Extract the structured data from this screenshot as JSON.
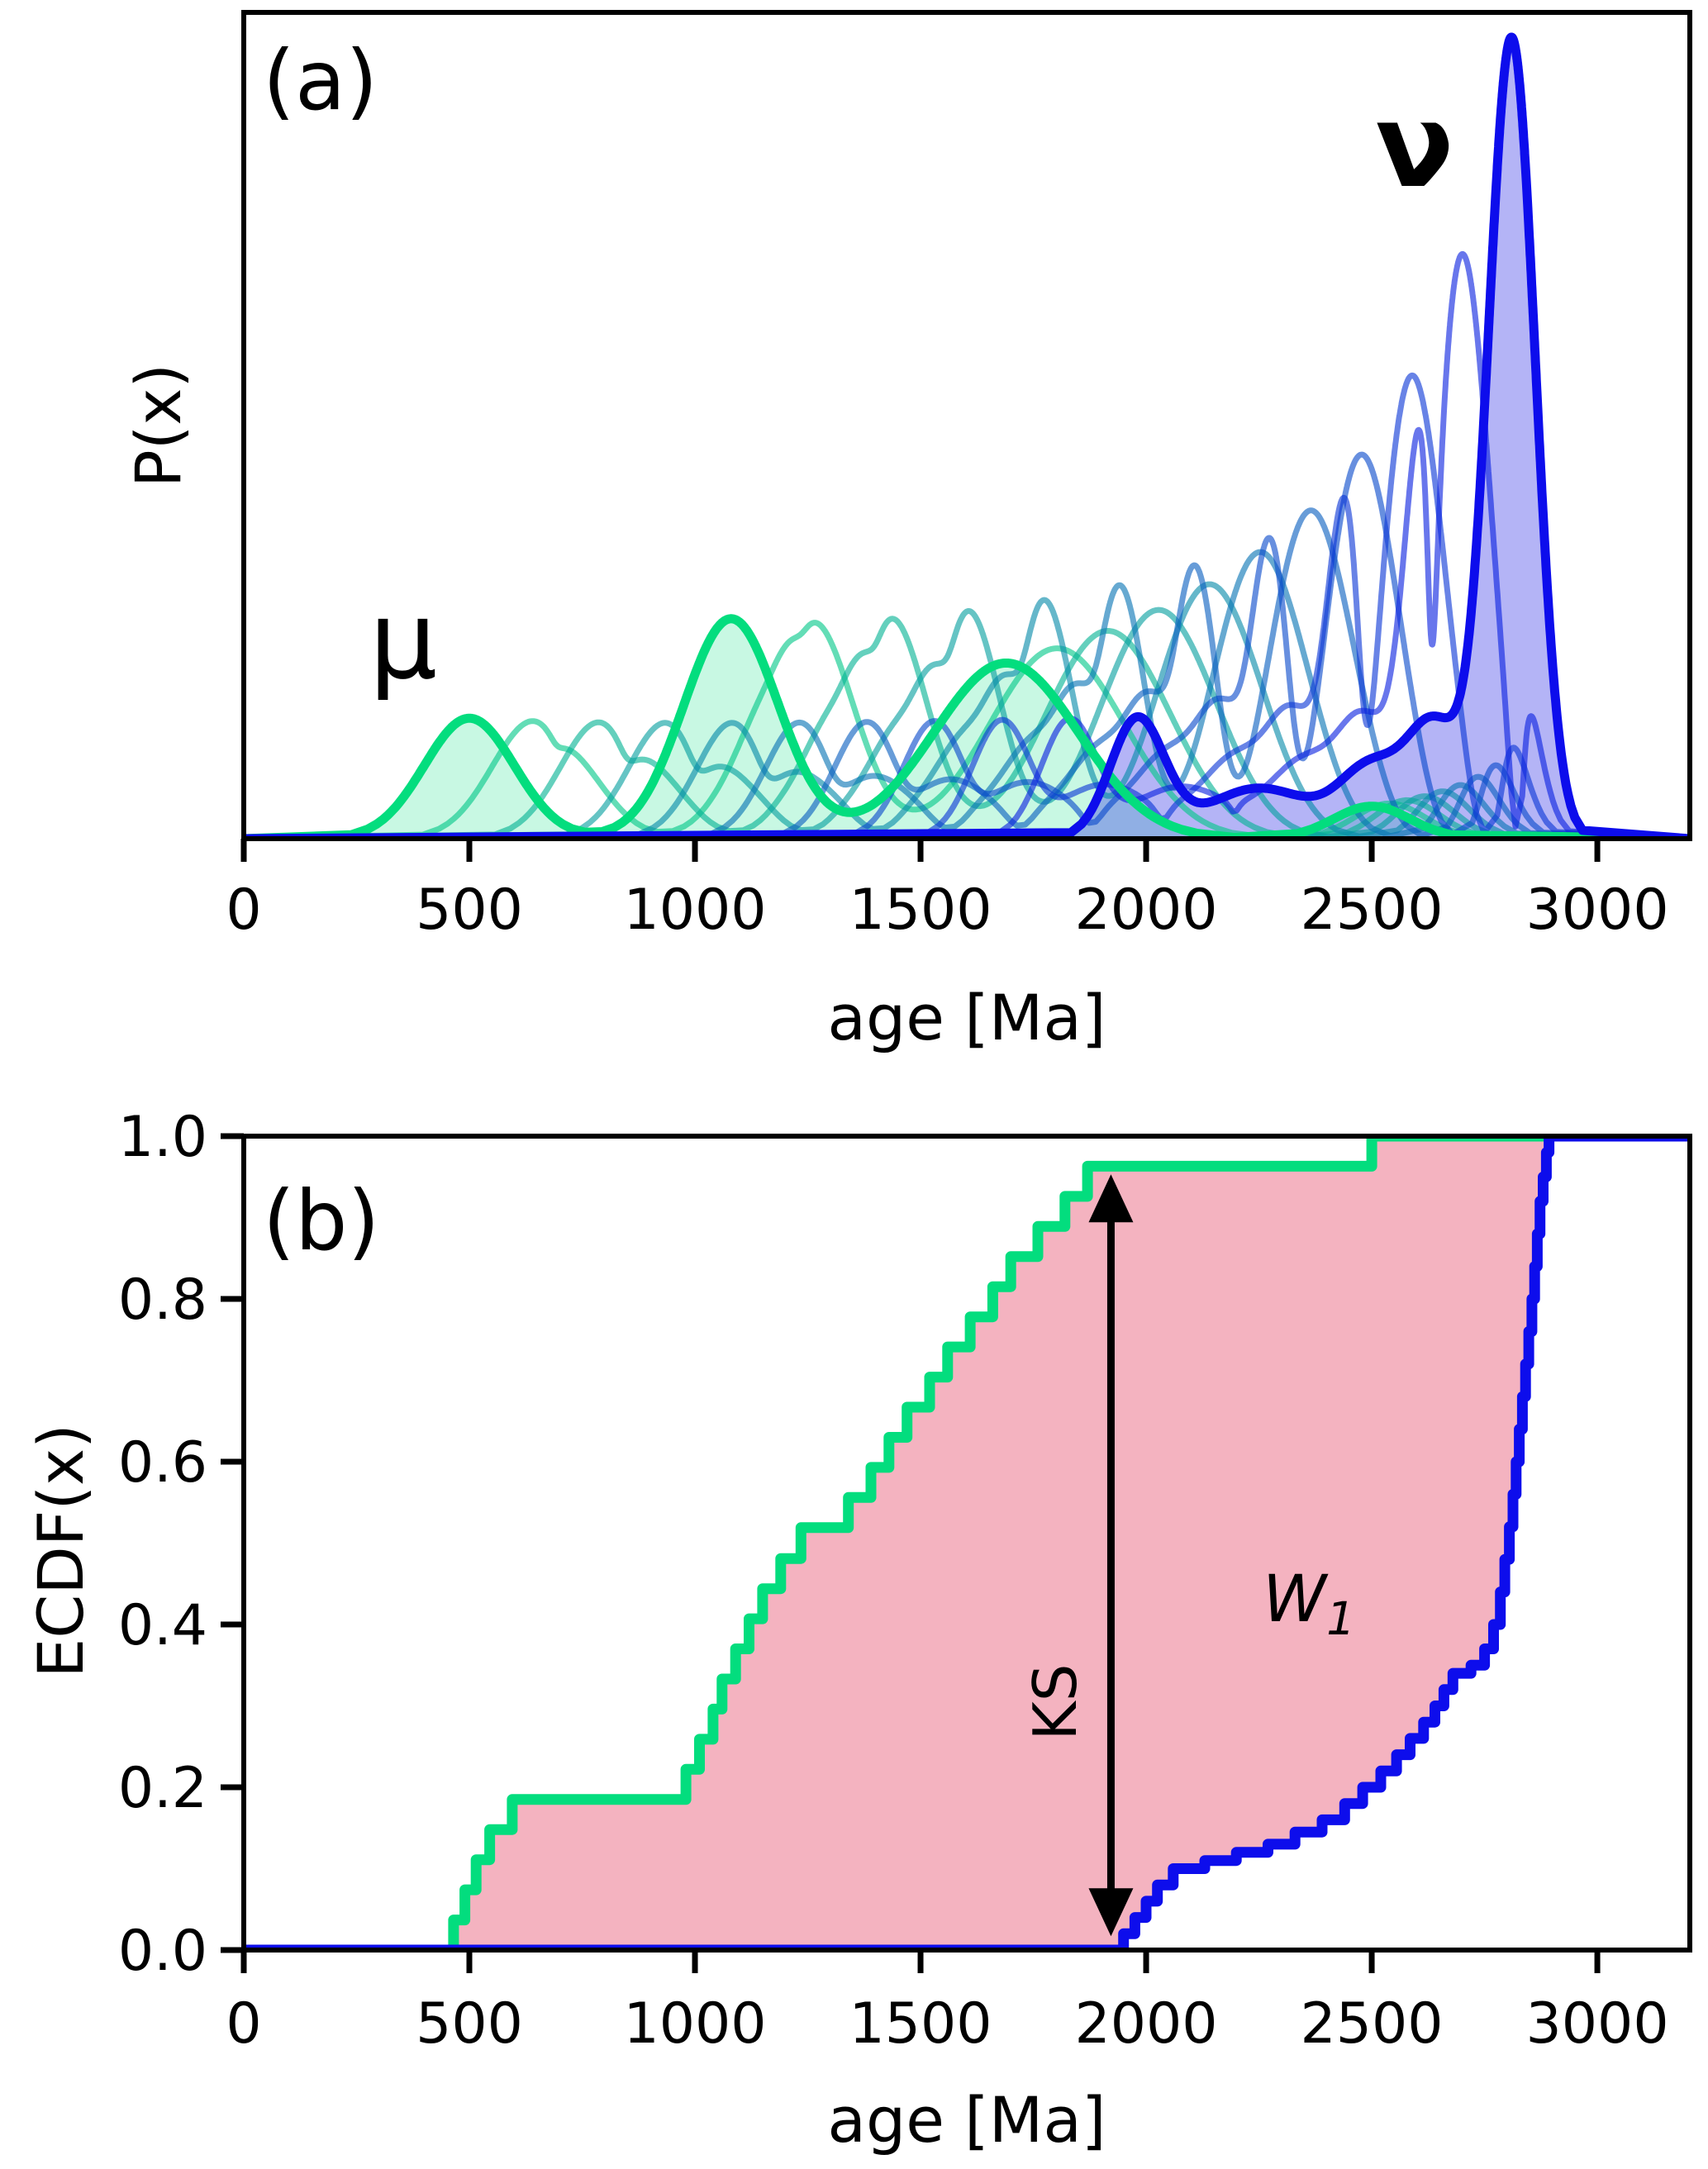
{
  "figure": {
    "panels": {
      "a": {
        "label": "(a)",
        "xlabel": "age [Ma]",
        "ylabel": "P(x)",
        "mu_label": "μ",
        "nu_label": "ν"
      },
      "b": {
        "label": "(b)",
        "xlabel": "age [Ma]",
        "ylabel": "ECDF(x)",
        "ks_label": "KS",
        "w1_label": "W",
        "w1_subscript": "1"
      }
    }
  },
  "chart_data": [
    {
      "panel": "a",
      "type": "area",
      "title": "(a)",
      "xlabel": "age [Ma]",
      "ylabel": "P(x)",
      "xlim": [
        0,
        3205
      ],
      "xticks": [
        0,
        500,
        1000,
        1500,
        2000,
        2500,
        3000
      ],
      "grid": false,
      "legend": "none (curves labeled μ and ν inside plot)",
      "mu_label": "μ",
      "nu_label": "ν",
      "mu_mixture_weight_mean_sigma": [
        [
          24,
          500,
          100
        ],
        [
          46,
          1080,
          105
        ],
        [
          56,
          1690,
          160
        ],
        [
          5.5,
          2500,
          85
        ]
      ],
      "nu_mixture_weight_mean_sigma": [
        [
          8.4,
          1980,
          60
        ],
        [
          7.2,
          2250,
          120
        ],
        [
          5.6,
          2500,
          70
        ],
        [
          7.8,
          2640,
          60
        ],
        [
          49.4,
          2810,
          52
        ]
      ],
      "interpolation_t": [
        0.1,
        0.2,
        0.3,
        0.4,
        0.5,
        0.6,
        0.7,
        0.8,
        0.9
      ],
      "peak_fraction_of_axis": 0.97,
      "colors": {
        "mu_line": "#03DD7E",
        "nu_line": "#0D0DEC",
        "mu_fill": "rgba(3,221,126,0.22)",
        "nu_fill": "rgba(40,40,230,0.35)",
        "intermediate_alpha": 0.62
      }
    },
    {
      "panel": "b",
      "type": "line",
      "title": "(b)",
      "xlabel": "age [Ma]",
      "ylabel": "ECDF(x)",
      "xlim": [
        0,
        3205
      ],
      "ylim": [
        0.0,
        1.0
      ],
      "xticks": [
        0,
        500,
        1000,
        1500,
        2000,
        2500,
        3000
      ],
      "yticks": [
        0.0,
        0.2,
        0.4,
        0.6,
        0.8,
        1.0
      ],
      "grid": false,
      "green_ecdf_steps": [
        [
          465,
          0.037
        ],
        [
          490,
          0.074
        ],
        [
          515,
          0.111
        ],
        [
          545,
          0.148
        ],
        [
          595,
          0.185
        ],
        [
          980,
          0.222
        ],
        [
          1010,
          0.259
        ],
        [
          1040,
          0.296
        ],
        [
          1060,
          0.333
        ],
        [
          1090,
          0.37
        ],
        [
          1120,
          0.407
        ],
        [
          1150,
          0.444
        ],
        [
          1190,
          0.481
        ],
        [
          1235,
          0.519
        ],
        [
          1340,
          0.556
        ],
        [
          1390,
          0.593
        ],
        [
          1430,
          0.63
        ],
        [
          1470,
          0.667
        ],
        [
          1520,
          0.704
        ],
        [
          1560,
          0.741
        ],
        [
          1610,
          0.778
        ],
        [
          1660,
          0.815
        ],
        [
          1700,
          0.852
        ],
        [
          1760,
          0.889
        ],
        [
          1820,
          0.926
        ],
        [
          1870,
          0.963
        ],
        [
          2500,
          1.0
        ]
      ],
      "blue_ecdf_steps": [
        [
          1950,
          0.02
        ],
        [
          1975,
          0.04
        ],
        [
          2000,
          0.06
        ],
        [
          2025,
          0.08
        ],
        [
          2060,
          0.1
        ],
        [
          2130,
          0.11
        ],
        [
          2200,
          0.12
        ],
        [
          2270,
          0.13
        ],
        [
          2330,
          0.145
        ],
        [
          2390,
          0.16
        ],
        [
          2440,
          0.18
        ],
        [
          2480,
          0.2
        ],
        [
          2520,
          0.22
        ],
        [
          2555,
          0.24
        ],
        [
          2585,
          0.26
        ],
        [
          2615,
          0.28
        ],
        [
          2640,
          0.3
        ],
        [
          2660,
          0.32
        ],
        [
          2680,
          0.34
        ],
        [
          2720,
          0.35
        ],
        [
          2750,
          0.37
        ],
        [
          2770,
          0.4
        ],
        [
          2785,
          0.44
        ],
        [
          2795,
          0.48
        ],
        [
          2805,
          0.52
        ],
        [
          2813,
          0.56
        ],
        [
          2820,
          0.6
        ],
        [
          2827,
          0.64
        ],
        [
          2834,
          0.68
        ],
        [
          2841,
          0.72
        ],
        [
          2848,
          0.76
        ],
        [
          2855,
          0.8
        ],
        [
          2861,
          0.84
        ],
        [
          2867,
          0.88
        ],
        [
          2873,
          0.92
        ],
        [
          2880,
          0.95
        ],
        [
          2887,
          0.98
        ],
        [
          2893,
          1.0
        ]
      ],
      "annotations": {
        "ks_arrow": {
          "x": 1922,
          "y_bottom": 0.017,
          "y_top": 0.953,
          "label": "KS"
        },
        "w1": {
          "x": 2300,
          "y": 0.43,
          "label": "W",
          "subscript": "1",
          "color": "#8B1414"
        }
      },
      "colors": {
        "green_line": "#03DD7E",
        "blue_line": "#0D0DEC",
        "fill_between": "rgba(220,20,60,0.32)"
      }
    }
  ]
}
